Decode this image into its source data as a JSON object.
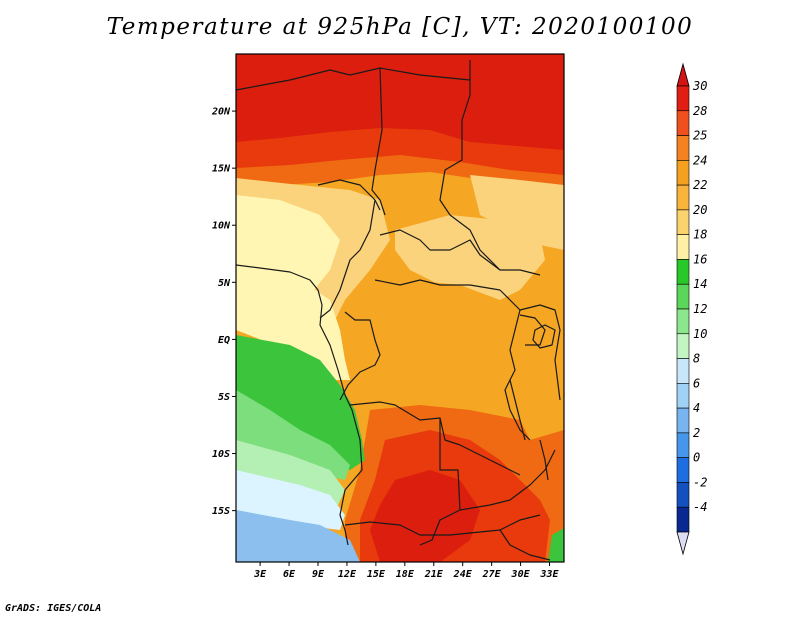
{
  "title": "Temperature at 925hPa [C], VT: 2020100100",
  "credit": "GrADS: IGES/COLA",
  "map": {
    "lat_labels": [
      {
        "label": "20N",
        "lat": 20
      },
      {
        "label": "15N",
        "lat": 15
      },
      {
        "label": "10N",
        "lat": 10
      },
      {
        "label": "5N",
        "lat": 5
      },
      {
        "label": "EQ",
        "lat": 0
      },
      {
        "label": "5S",
        "lat": -5
      },
      {
        "label": "10S",
        "lat": -10
      },
      {
        "label": "15S",
        "lat": -15
      }
    ],
    "lon_labels": [
      {
        "label": "3E",
        "lon": 3
      },
      {
        "label": "6E",
        "lon": 6
      },
      {
        "label": "9E",
        "lon": 9
      },
      {
        "label": "12E",
        "lon": 12
      },
      {
        "label": "15E",
        "lon": 15
      },
      {
        "label": "18E",
        "lon": 18
      },
      {
        "label": "21E",
        "lon": 21
      },
      {
        "label": "24E",
        "lon": 24
      },
      {
        "label": "27E",
        "lon": 27
      },
      {
        "label": "30E",
        "lon": 30
      },
      {
        "label": "33E",
        "lon": 33
      }
    ],
    "lon_range": [
      0.5,
      34.5
    ],
    "lat_range": [
      -19.5,
      25
    ],
    "colors": {
      "sea_cold": "#8cbfee",
      "sea_cool": "#dcf4ff",
      "green_dark": "#3cc53c",
      "green_light": "#b4f0b4",
      "pale_yellow": "#fff6b3",
      "light_orange": "#fad37c",
      "orange": "#f5a623",
      "dark_orange": "#ef6a12",
      "red_orange": "#e83a0c",
      "red": "#dc1e0e"
    }
  },
  "colorbar": {
    "tick_labels": [
      "30",
      "28",
      "25",
      "24",
      "22",
      "20",
      "18",
      "16",
      "14",
      "12",
      "10",
      "8",
      "6",
      "4",
      "2",
      "0",
      "-2",
      "-4"
    ],
    "colors": [
      "#e11e14",
      "#f0501e",
      "#f5821e",
      "#f5a01e",
      "#fab43c",
      "#fad26e",
      "#fff0a5",
      "#28c828",
      "#5ad75a",
      "#8ce68c",
      "#c3f5c3",
      "#c8e6fa",
      "#a0d2f5",
      "#78b4f0",
      "#4696eb",
      "#1e6ee1",
      "#1450be",
      "#0a2891"
    ],
    "top_cap_color": "#d21414",
    "bottom_cap_color": "#dcdcf5"
  }
}
